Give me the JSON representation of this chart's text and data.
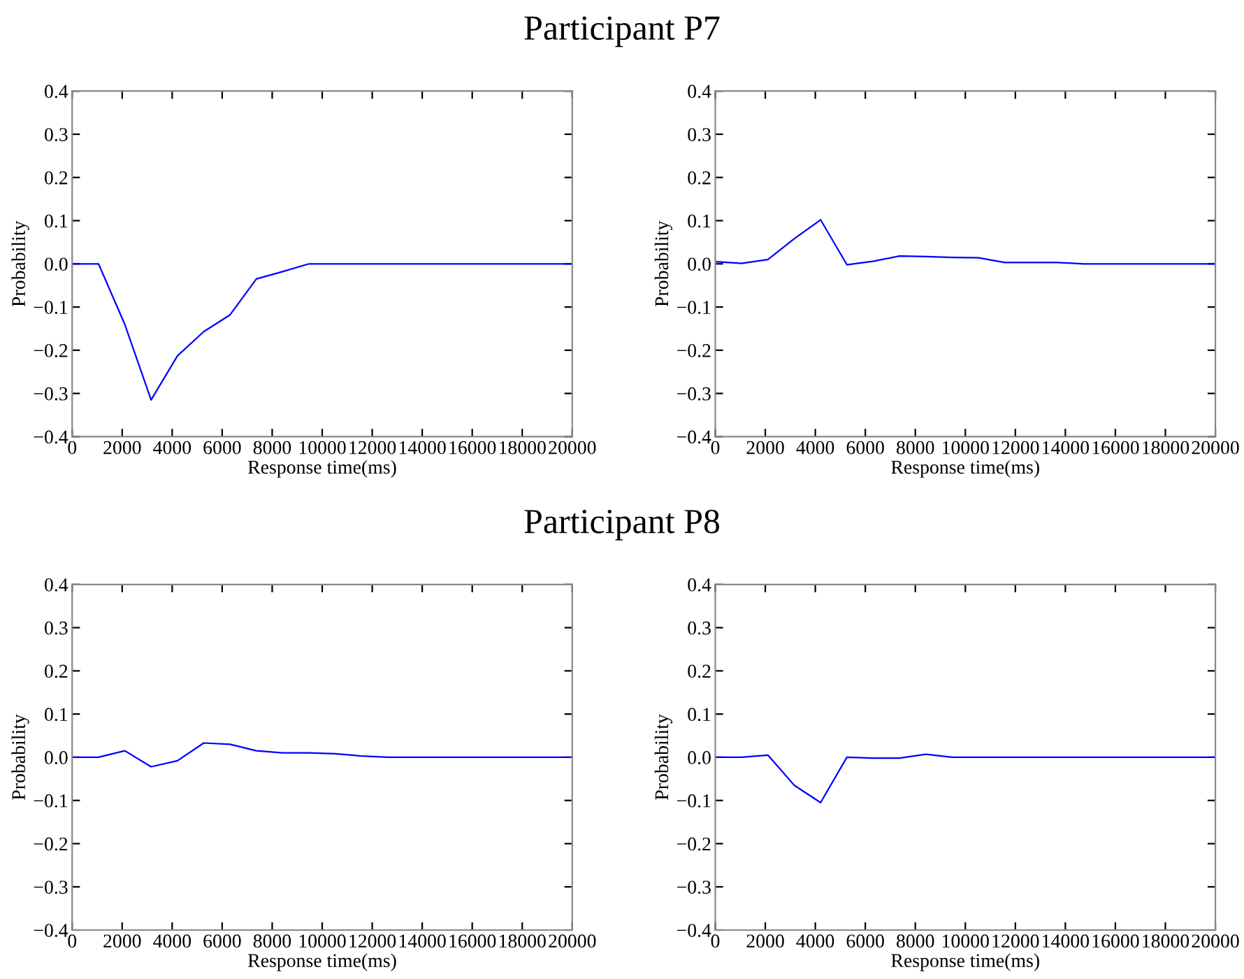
{
  "chart_data": [
    {
      "type": "line",
      "title": "Participant P7",
      "xlabel": "Response time(ms)",
      "ylabel": "Probability",
      "xlim": [
        0,
        20000
      ],
      "ylim": [
        -0.4,
        0.4
      ],
      "xticks": [
        0,
        2000,
        4000,
        6000,
        8000,
        10000,
        12000,
        14000,
        16000,
        18000,
        20000
      ],
      "yticks": [
        {
          "value": -0.4,
          "label": "−0.4"
        },
        {
          "value": -0.3,
          "label": "−0.3"
        },
        {
          "value": -0.2,
          "label": "−0.2"
        },
        {
          "value": -0.1,
          "label": "−0.1"
        },
        {
          "value": 0.0,
          "label": "0.0"
        },
        {
          "value": 0.1,
          "label": "0.1"
        },
        {
          "value": 0.2,
          "label": "0.2"
        },
        {
          "value": 0.3,
          "label": "0.3"
        },
        {
          "value": 0.4,
          "label": "0.4"
        }
      ],
      "grid": false,
      "legend": false,
      "x": [
        0,
        1053,
        2105,
        3158,
        4211,
        5263,
        6316,
        7368,
        8421,
        9474,
        10526,
        11579,
        12632,
        13684,
        14737,
        15789,
        16842,
        17895,
        18947,
        20000
      ],
      "series": [
        {
          "color": "#0000ff",
          "values": [
            0.0,
            0.0,
            -0.14,
            -0.315,
            -0.213,
            -0.157,
            -0.118,
            -0.035,
            -0.018,
            0.0,
            0.0,
            0.0,
            0.0,
            0.0,
            0.0,
            0.0,
            0.0,
            0.0,
            0.0,
            0.0
          ]
        }
      ]
    },
    {
      "type": "line",
      "xlabel": "Response time(ms)",
      "ylabel": "Probability",
      "xlim": [
        0,
        20000
      ],
      "ylim": [
        -0.4,
        0.4
      ],
      "xticks": [
        0,
        2000,
        4000,
        6000,
        8000,
        10000,
        12000,
        14000,
        16000,
        18000,
        20000
      ],
      "yticks": [
        {
          "value": -0.4,
          "label": "−0.4"
        },
        {
          "value": -0.3,
          "label": "−0.3"
        },
        {
          "value": -0.2,
          "label": "−0.2"
        },
        {
          "value": -0.1,
          "label": "−0.1"
        },
        {
          "value": 0.0,
          "label": "0.0"
        },
        {
          "value": 0.1,
          "label": "0.1"
        },
        {
          "value": 0.2,
          "label": "0.2"
        },
        {
          "value": 0.3,
          "label": "0.3"
        },
        {
          "value": 0.4,
          "label": "0.4"
        }
      ],
      "grid": false,
      "legend": false,
      "x": [
        0,
        1053,
        2105,
        3158,
        4211,
        5263,
        6316,
        7368,
        8421,
        9474,
        10526,
        11579,
        12632,
        13684,
        14737,
        15789,
        16842,
        17895,
        18947,
        20000
      ],
      "series": [
        {
          "color": "#0000ff",
          "values": [
            0.005,
            0.001,
            0.01,
            0.058,
            0.102,
            -0.002,
            0.006,
            0.018,
            0.017,
            0.015,
            0.014,
            0.003,
            0.003,
            0.003,
            0.0,
            0.0,
            0.0,
            0.0,
            0.0,
            0.0
          ]
        }
      ]
    },
    {
      "type": "line",
      "title": "Participant P8",
      "xlabel": "Response time(ms)",
      "ylabel": "Probability",
      "xlim": [
        0,
        20000
      ],
      "ylim": [
        -0.4,
        0.4
      ],
      "xticks": [
        0,
        2000,
        4000,
        6000,
        8000,
        10000,
        12000,
        14000,
        16000,
        18000,
        20000
      ],
      "yticks": [
        {
          "value": -0.4,
          "label": "−0.4"
        },
        {
          "value": -0.3,
          "label": "−0.3"
        },
        {
          "value": -0.2,
          "label": "−0.2"
        },
        {
          "value": -0.1,
          "label": "−0.1"
        },
        {
          "value": 0.0,
          "label": "0.0"
        },
        {
          "value": 0.1,
          "label": "0.1"
        },
        {
          "value": 0.2,
          "label": "0.2"
        },
        {
          "value": 0.3,
          "label": "0.3"
        },
        {
          "value": 0.4,
          "label": "0.4"
        }
      ],
      "grid": false,
      "legend": false,
      "x": [
        0,
        1053,
        2105,
        3158,
        4211,
        5263,
        6316,
        7368,
        8421,
        9474,
        10526,
        11579,
        12632,
        13684,
        14737,
        15789,
        16842,
        17895,
        18947,
        20000
      ],
      "series": [
        {
          "color": "#0000ff",
          "values": [
            0.0,
            0.0,
            0.015,
            -0.022,
            -0.008,
            0.033,
            0.03,
            0.015,
            0.01,
            0.01,
            0.008,
            0.003,
            0.0,
            0.0,
            0.0,
            0.0,
            0.0,
            0.0,
            0.0,
            0.0
          ]
        }
      ]
    },
    {
      "type": "line",
      "xlabel": "Response time(ms)",
      "ylabel": "Probability",
      "xlim": [
        0,
        20000
      ],
      "ylim": [
        -0.4,
        0.4
      ],
      "xticks": [
        0,
        2000,
        4000,
        6000,
        8000,
        10000,
        12000,
        14000,
        16000,
        18000,
        20000
      ],
      "yticks": [
        {
          "value": -0.4,
          "label": "−0.4"
        },
        {
          "value": -0.3,
          "label": "−0.3"
        },
        {
          "value": -0.2,
          "label": "−0.2"
        },
        {
          "value": -0.1,
          "label": "−0.1"
        },
        {
          "value": 0.0,
          "label": "0.0"
        },
        {
          "value": 0.1,
          "label": "0.1"
        },
        {
          "value": 0.2,
          "label": "0.2"
        },
        {
          "value": 0.3,
          "label": "0.3"
        },
        {
          "value": 0.4,
          "label": "0.4"
        }
      ],
      "grid": false,
      "legend": false,
      "x": [
        0,
        1053,
        2105,
        3158,
        4211,
        5263,
        6316,
        7368,
        8421,
        9474,
        10526,
        11579,
        12632,
        13684,
        14737,
        15789,
        16842,
        17895,
        18947,
        20000
      ],
      "series": [
        {
          "color": "#0000ff",
          "values": [
            0.0,
            0.0,
            0.005,
            -0.065,
            -0.105,
            0.0,
            -0.002,
            -0.002,
            0.007,
            0.0,
            0.0,
            0.0,
            0.0,
            0.0,
            0.0,
            0.0,
            0.0,
            0.0,
            0.0,
            0.0
          ]
        }
      ]
    }
  ]
}
